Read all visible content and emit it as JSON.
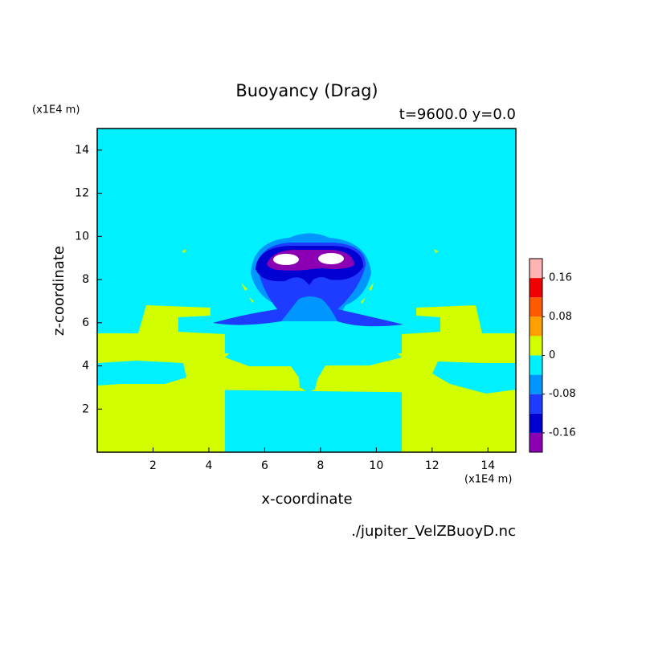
{
  "chart_data": {
    "type": "contour",
    "title": "Buoyancy (Drag)",
    "subtitle": "t=9600.0 y=0.0",
    "x_label": "x-coordinate",
    "y_label": "z-coordinate",
    "x_unit": "(x1E4 m)",
    "y_unit": "(x1E4 m)",
    "source": "./jupiter_VelZBuoyD.nc",
    "xlim": [
      0,
      15
    ],
    "ylim": [
      0,
      15
    ],
    "xticks": [
      2,
      4,
      6,
      8,
      10,
      12,
      14
    ],
    "yticks": [
      2,
      4,
      6,
      8,
      10,
      12,
      14
    ],
    "colorbar": {
      "levels": [
        -0.16,
        -0.12,
        -0.08,
        -0.04,
        0,
        0.04,
        0.08,
        0.12,
        0.16
      ],
      "colors": [
        "#8c00b4",
        "#0000d2",
        "#1e3cff",
        "#0096ff",
        "#00f0ff",
        "#d2ff00",
        "#ffa000",
        "#ff5a00",
        "#f00000",
        "#ffb4b4"
      ],
      "ticks": [
        -0.16,
        -0.08,
        0,
        0.08,
        0.16
      ]
    }
  }
}
